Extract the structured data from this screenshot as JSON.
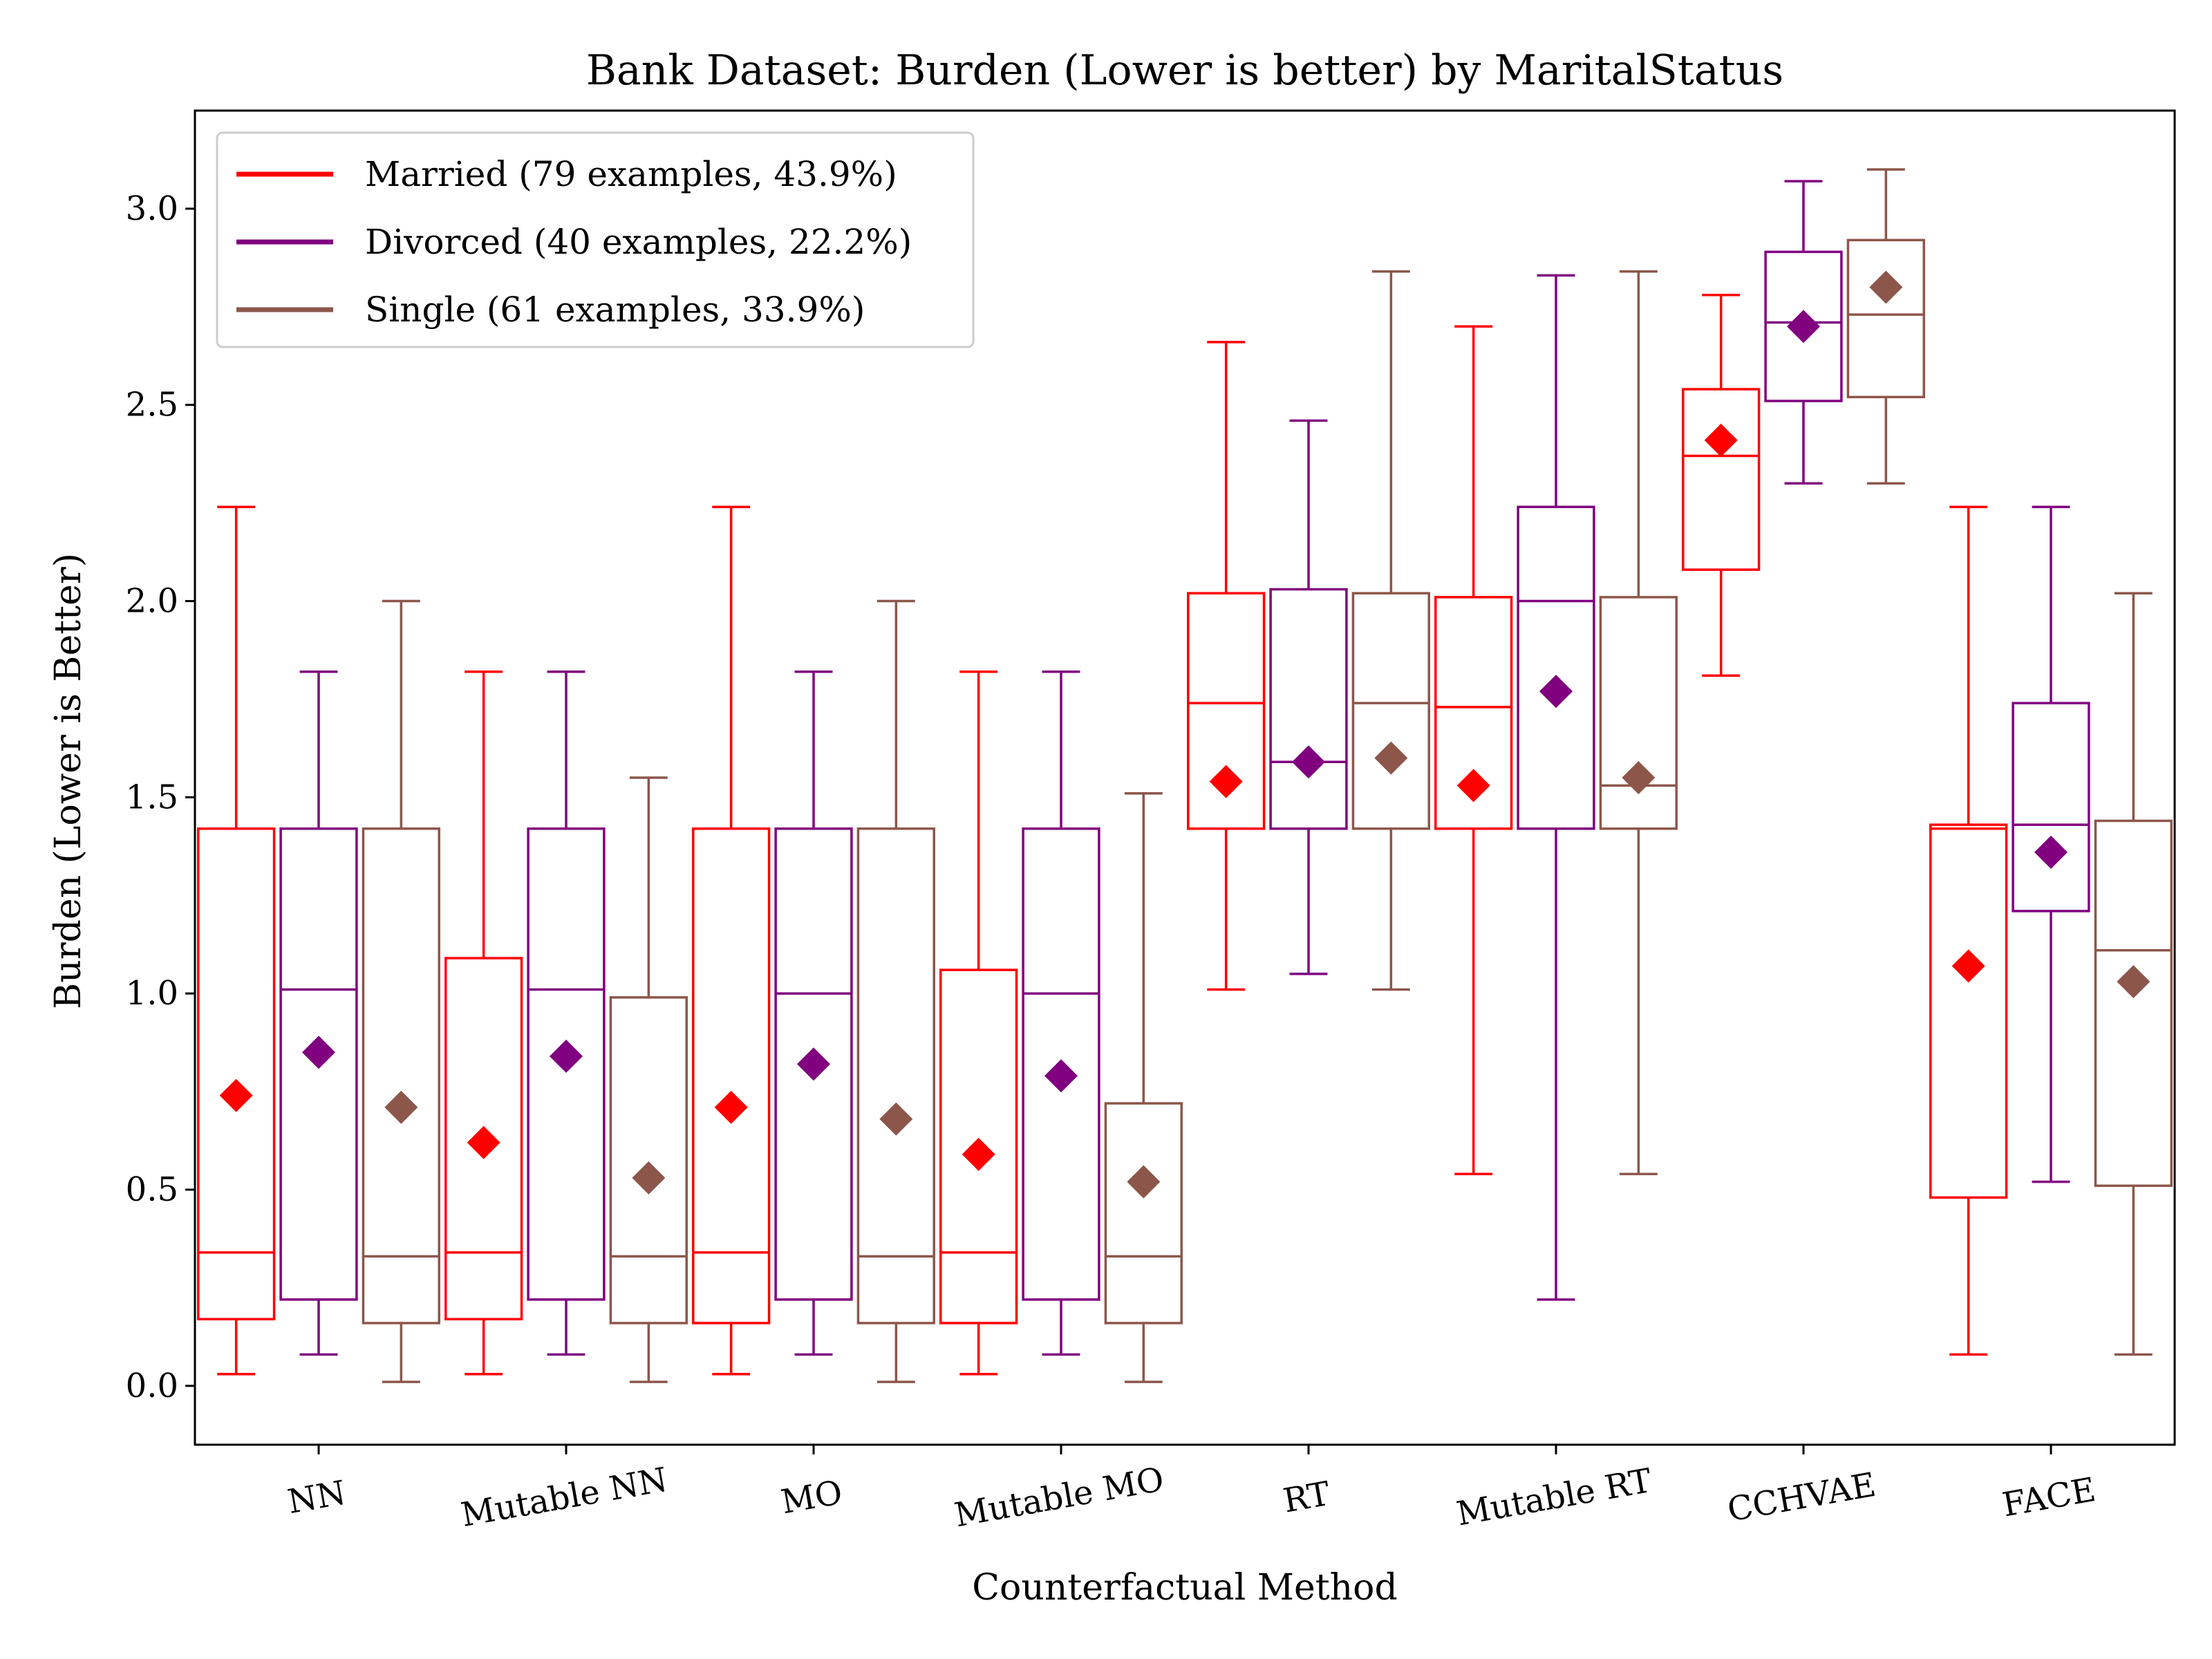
{
  "chart_data": {
    "type": "boxplot",
    "title": "Bank Dataset: Burden (Lower is better) by MaritalStatus",
    "xlabel": "Counterfactual Method",
    "ylabel": "Burden (Lower is Better)",
    "ylim": [
      -0.15,
      3.25
    ],
    "yticks": [
      "0.0",
      "0.5",
      "1.0",
      "1.5",
      "2.0",
      "2.5",
      "3.0"
    ],
    "legend_position": "top-left",
    "grid": false,
    "mean_marker": "diamond",
    "categories": [
      "NN",
      "Mutable NN",
      "MO",
      "Mutable MO",
      "RT",
      "Mutable RT",
      "CCHVAE",
      "FACE"
    ],
    "series": [
      {
        "name": "Married (79 examples, 43.9%)",
        "color": "#ff0000",
        "boxes": [
          {
            "whisker_low": 0.03,
            "q1": 0.17,
            "median": 0.34,
            "q3": 1.42,
            "whisker_high": 2.24,
            "mean": 0.74
          },
          {
            "whisker_low": 0.03,
            "q1": 0.17,
            "median": 0.34,
            "q3": 1.09,
            "whisker_high": 1.82,
            "mean": 0.62
          },
          {
            "whisker_low": 0.03,
            "q1": 0.16,
            "median": 0.34,
            "q3": 1.42,
            "whisker_high": 2.24,
            "mean": 0.71
          },
          {
            "whisker_low": 0.03,
            "q1": 0.16,
            "median": 0.34,
            "q3": 1.06,
            "whisker_high": 1.82,
            "mean": 0.59
          },
          {
            "whisker_low": 1.01,
            "q1": 1.42,
            "median": 1.74,
            "q3": 2.02,
            "whisker_high": 2.66,
            "mean": 1.54
          },
          {
            "whisker_low": 0.54,
            "q1": 1.42,
            "median": 1.73,
            "q3": 2.01,
            "whisker_high": 2.7,
            "mean": 1.53
          },
          {
            "whisker_low": 1.81,
            "q1": 2.08,
            "median": 2.37,
            "q3": 2.54,
            "whisker_high": 2.78,
            "mean": 2.41
          },
          {
            "whisker_low": 0.08,
            "q1": 0.48,
            "median": 1.42,
            "q3": 1.43,
            "whisker_high": 2.24,
            "mean": 1.07
          }
        ]
      },
      {
        "name": "Divorced (40 examples, 22.2%)",
        "color": "#800080",
        "boxes": [
          {
            "whisker_low": 0.08,
            "q1": 0.22,
            "median": 1.01,
            "q3": 1.42,
            "whisker_high": 1.82,
            "mean": 0.85
          },
          {
            "whisker_low": 0.08,
            "q1": 0.22,
            "median": 1.01,
            "q3": 1.42,
            "whisker_high": 1.82,
            "mean": 0.84
          },
          {
            "whisker_low": 0.08,
            "q1": 0.22,
            "median": 1.0,
            "q3": 1.42,
            "whisker_high": 1.82,
            "mean": 0.82
          },
          {
            "whisker_low": 0.08,
            "q1": 0.22,
            "median": 1.0,
            "q3": 1.42,
            "whisker_high": 1.82,
            "mean": 0.79
          },
          {
            "whisker_low": 1.05,
            "q1": 1.42,
            "median": 1.59,
            "q3": 2.03,
            "whisker_high": 2.46,
            "mean": 1.59
          },
          {
            "whisker_low": 0.22,
            "q1": 1.42,
            "median": 2.0,
            "q3": 2.24,
            "whisker_high": 2.83,
            "mean": 1.77
          },
          {
            "whisker_low": 2.3,
            "q1": 2.51,
            "median": 2.71,
            "q3": 2.89,
            "whisker_high": 3.07,
            "mean": 2.7
          },
          {
            "whisker_low": 0.52,
            "q1": 1.21,
            "median": 1.43,
            "q3": 1.74,
            "whisker_high": 2.24,
            "mean": 1.36
          }
        ]
      },
      {
        "name": "Single (61 examples, 33.9%)",
        "color": "#8c564b",
        "boxes": [
          {
            "whisker_low": 0.01,
            "q1": 0.16,
            "median": 0.33,
            "q3": 1.42,
            "whisker_high": 2.0,
            "mean": 0.71
          },
          {
            "whisker_low": 0.01,
            "q1": 0.16,
            "median": 0.33,
            "q3": 0.99,
            "whisker_high": 1.55,
            "mean": 0.53
          },
          {
            "whisker_low": 0.01,
            "q1": 0.16,
            "median": 0.33,
            "q3": 1.42,
            "whisker_high": 2.0,
            "mean": 0.68
          },
          {
            "whisker_low": 0.01,
            "q1": 0.16,
            "median": 0.33,
            "q3": 0.72,
            "whisker_high": 1.51,
            "mean": 0.52
          },
          {
            "whisker_low": 1.01,
            "q1": 1.42,
            "median": 1.74,
            "q3": 2.02,
            "whisker_high": 2.84,
            "mean": 1.6
          },
          {
            "whisker_low": 0.54,
            "q1": 1.42,
            "median": 1.53,
            "q3": 2.01,
            "whisker_high": 2.84,
            "mean": 1.55
          },
          {
            "whisker_low": 2.3,
            "q1": 2.52,
            "median": 2.73,
            "q3": 2.92,
            "whisker_high": 3.1,
            "mean": 2.8
          },
          {
            "whisker_low": 0.08,
            "q1": 0.51,
            "median": 1.11,
            "q3": 1.44,
            "whisker_high": 2.02,
            "mean": 1.03
          }
        ]
      }
    ]
  }
}
